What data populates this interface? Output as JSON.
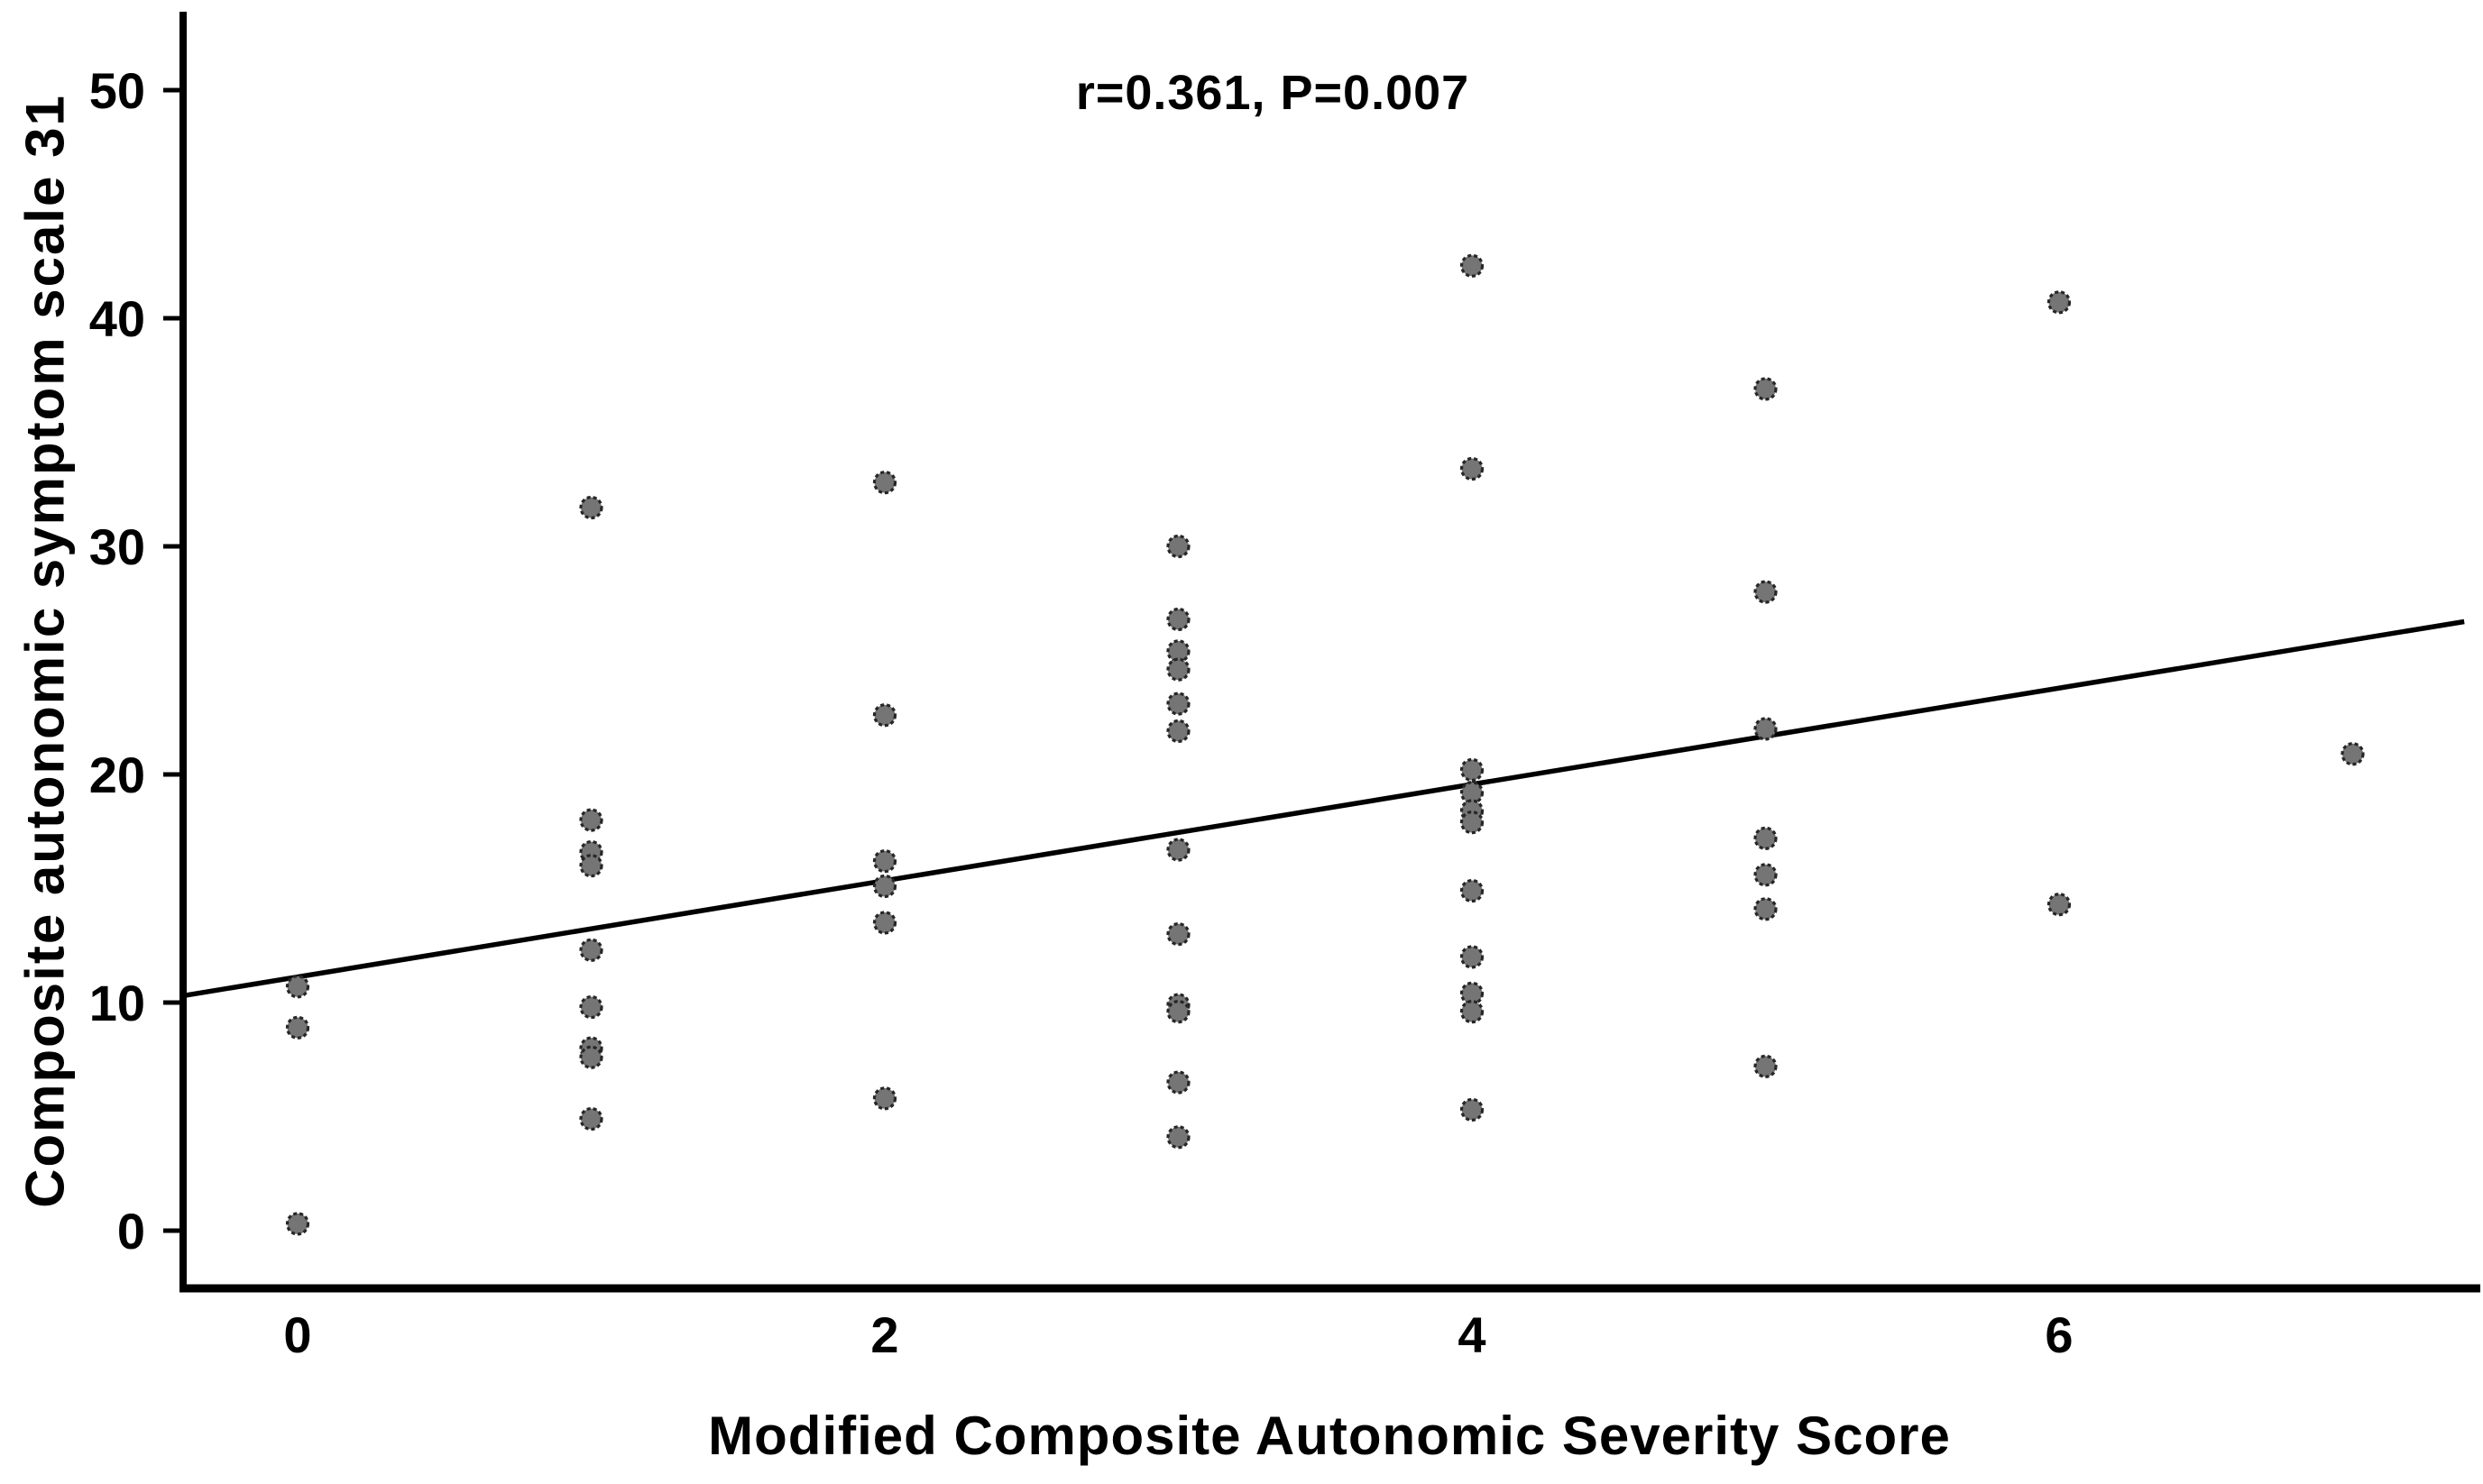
{
  "chart_data": {
    "type": "scatter",
    "annotation": "r=0.361, P=0.007",
    "xlabel": "Modified Composite Autonomic Severity Score",
    "ylabel": "Composite autonomic symptom scale 31",
    "x_ticks": [
      0,
      2,
      4,
      6
    ],
    "y_ticks": [
      0,
      10,
      20,
      30,
      40,
      50
    ],
    "xlim": [
      -0.39,
      7.38
    ],
    "ylim": [
      -2.5,
      53.4
    ],
    "grid": false,
    "legend": "none",
    "point_fill_color": "#757575",
    "point_edge_color": "#262626",
    "line_color": "#000000",
    "axis_color": "#000000",
    "points": [
      {
        "x": 0,
        "y": 10.7
      },
      {
        "x": 0,
        "y": 8.9
      },
      {
        "x": 0,
        "y": 0.3
      },
      {
        "x": 1,
        "y": 31.7
      },
      {
        "x": 1,
        "y": 18.0
      },
      {
        "x": 1,
        "y": 16.6
      },
      {
        "x": 1,
        "y": 16.0
      },
      {
        "x": 1,
        "y": 12.3
      },
      {
        "x": 1,
        "y": 9.8
      },
      {
        "x": 1,
        "y": 8.0
      },
      {
        "x": 1,
        "y": 7.6
      },
      {
        "x": 1,
        "y": 4.9
      },
      {
        "x": 2,
        "y": 32.8
      },
      {
        "x": 2,
        "y": 22.6
      },
      {
        "x": 2,
        "y": 16.2
      },
      {
        "x": 2,
        "y": 15.1
      },
      {
        "x": 2,
        "y": 13.5
      },
      {
        "x": 2,
        "y": 5.8
      },
      {
        "x": 3,
        "y": 30.0
      },
      {
        "x": 3,
        "y": 26.8
      },
      {
        "x": 3,
        "y": 25.4
      },
      {
        "x": 3,
        "y": 24.6
      },
      {
        "x": 3,
        "y": 23.1
      },
      {
        "x": 3,
        "y": 21.9
      },
      {
        "x": 3,
        "y": 16.7
      },
      {
        "x": 3,
        "y": 13.0
      },
      {
        "x": 3,
        "y": 9.9
      },
      {
        "x": 3,
        "y": 9.6
      },
      {
        "x": 3,
        "y": 6.5
      },
      {
        "x": 3,
        "y": 4.1
      },
      {
        "x": 4,
        "y": 42.3
      },
      {
        "x": 4,
        "y": 33.4
      },
      {
        "x": 4,
        "y": 20.2
      },
      {
        "x": 4,
        "y": 19.2
      },
      {
        "x": 4,
        "y": 18.4
      },
      {
        "x": 4,
        "y": 17.9
      },
      {
        "x": 4,
        "y": 14.9
      },
      {
        "x": 4,
        "y": 12.0
      },
      {
        "x": 4,
        "y": 10.4
      },
      {
        "x": 4,
        "y": 9.6
      },
      {
        "x": 4,
        "y": 5.3
      },
      {
        "x": 5,
        "y": 36.9
      },
      {
        "x": 5,
        "y": 28.0
      },
      {
        "x": 5,
        "y": 22.0
      },
      {
        "x": 5,
        "y": 17.2
      },
      {
        "x": 5,
        "y": 15.6
      },
      {
        "x": 5,
        "y": 14.1
      },
      {
        "x": 5,
        "y": 7.2
      },
      {
        "x": 6,
        "y": 40.7
      },
      {
        "x": 6,
        "y": 14.3
      },
      {
        "x": 7,
        "y": 20.9
      }
    ],
    "regression_line": {
      "x_start": -0.39,
      "y_start": 10.3,
      "x_end": 7.38,
      "y_end": 26.7
    }
  }
}
